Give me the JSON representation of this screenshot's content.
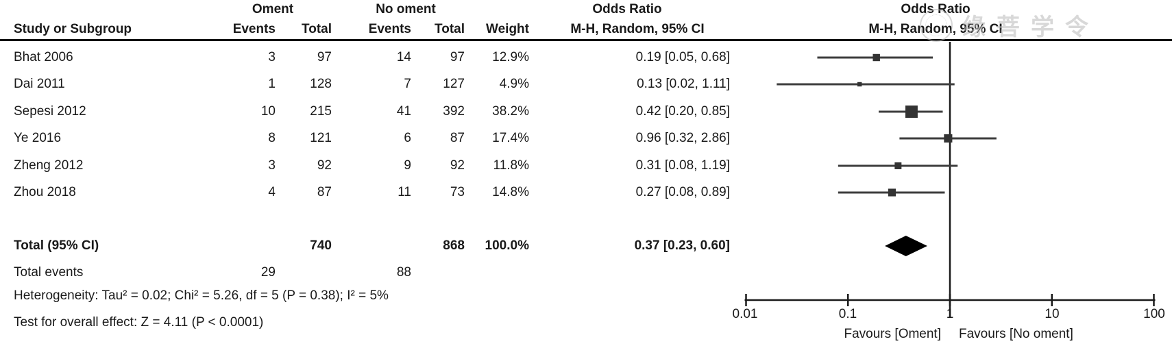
{
  "colors": {
    "text": "#1a1a1a",
    "ci_line": "#3d3d3d",
    "marker": "#333333",
    "diamond": "#000000",
    "axis": "#1a1a1a",
    "watermark": "#b9b9b9"
  },
  "table": {
    "header": {
      "group1": "Oment",
      "group2": "No oment",
      "odds_ratio_left": "Odds Ratio",
      "odds_ratio_right": "Odds Ratio",
      "method_left": "M-H, Random, 95% CI",
      "method_right": "M-H, Random, 95% CI",
      "study": "Study or Subgroup",
      "events1": "Events",
      "total1": "Total",
      "events2": "Events",
      "total2": "Total",
      "weight": "Weight"
    },
    "rows": [
      {
        "study": "Bhat 2006",
        "ev1": "3",
        "tot1": "97",
        "ev2": "14",
        "tot2": "97",
        "weight": "12.9%",
        "or": "0.19 [0.05, 0.68]"
      },
      {
        "study": "Dai 2011",
        "ev1": "1",
        "tot1": "128",
        "ev2": "7",
        "tot2": "127",
        "weight": "4.9%",
        "or": "0.13 [0.02, 1.11]"
      },
      {
        "study": "Sepesi 2012",
        "ev1": "10",
        "tot1": "215",
        "ev2": "41",
        "tot2": "392",
        "weight": "38.2%",
        "or": "0.42 [0.20, 0.85]"
      },
      {
        "study": "Ye 2016",
        "ev1": "8",
        "tot1": "121",
        "ev2": "6",
        "tot2": "87",
        "weight": "17.4%",
        "or": "0.96 [0.32, 2.86]"
      },
      {
        "study": "Zheng 2012",
        "ev1": "3",
        "tot1": "92",
        "ev2": "9",
        "tot2": "92",
        "weight": "11.8%",
        "or": "0.31 [0.08, 1.19]"
      },
      {
        "study": "Zhou 2018",
        "ev1": "4",
        "tot1": "87",
        "ev2": "11",
        "tot2": "73",
        "weight": "14.8%",
        "or": "0.27 [0.08, 0.89]"
      }
    ],
    "total_row": {
      "label": "Total (95% CI)",
      "tot1": "740",
      "tot2": "868",
      "weight": "100.0%",
      "or": "0.37 [0.23, 0.60]"
    },
    "total_events": {
      "label": "Total events",
      "ev1": "29",
      "ev2": "88"
    },
    "footnotes": {
      "heterogeneity": "Heterogeneity: Tau² = 0.02; Chi² = 5.26, df = 5 (P = 0.38); I² = 5%",
      "overall_effect": "Test for overall effect: Z = 4.11 (P < 0.0001)"
    }
  },
  "axis": {
    "tick_labels": [
      "0.01",
      "0.1",
      "1",
      "10",
      "100"
    ],
    "favours_left": "Favours [Oment]",
    "favours_right": "Favours [No oment]"
  },
  "watermark": {
    "text": "缘菩学令"
  },
  "chart_data": {
    "type": "forest",
    "x_scale": "log10",
    "xlim": [
      0.01,
      100
    ],
    "x_ticks": [
      0.01,
      0.1,
      1,
      10,
      100
    ],
    "reference_line": 1,
    "effect_measure": "Odds Ratio, M-H, Random, 95% CI",
    "studies": [
      {
        "label": "Bhat 2006",
        "or": 0.19,
        "ci_low": 0.05,
        "ci_high": 0.68,
        "weight_pct": 12.9
      },
      {
        "label": "Dai 2011",
        "or": 0.13,
        "ci_low": 0.02,
        "ci_high": 1.11,
        "weight_pct": 4.9
      },
      {
        "label": "Sepesi 2012",
        "or": 0.42,
        "ci_low": 0.2,
        "ci_high": 0.85,
        "weight_pct": 38.2
      },
      {
        "label": "Ye 2016",
        "or": 0.96,
        "ci_low": 0.32,
        "ci_high": 2.86,
        "weight_pct": 17.4
      },
      {
        "label": "Zheng 2012",
        "or": 0.31,
        "ci_low": 0.08,
        "ci_high": 1.19,
        "weight_pct": 11.8
      },
      {
        "label": "Zhou 2018",
        "or": 0.27,
        "ci_low": 0.08,
        "ci_high": 0.89,
        "weight_pct": 14.8
      }
    ],
    "total": {
      "label": "Total (95% CI)",
      "or": 0.37,
      "ci_low": 0.23,
      "ci_high": 0.6,
      "weight_pct": 100.0
    },
    "favours_left": "Favours [Oment]",
    "favours_right": "Favours [No oment]"
  }
}
